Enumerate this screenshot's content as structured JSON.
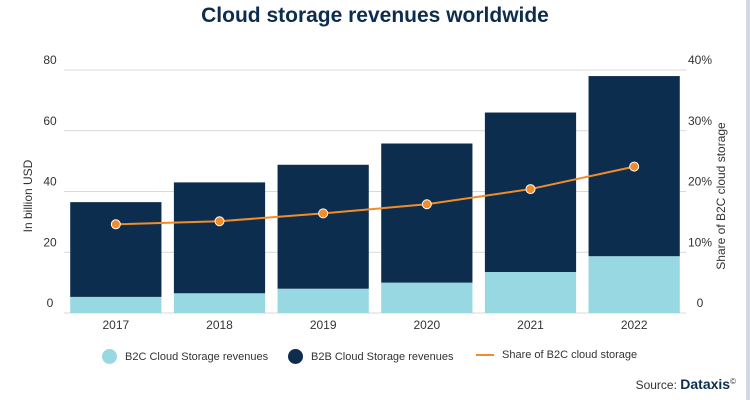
{
  "title": "Cloud storage revenues worldwide",
  "chart_data": {
    "type": "bar",
    "categories": [
      "2017",
      "2018",
      "2019",
      "2020",
      "2021",
      "2022"
    ],
    "series": [
      {
        "name": "B2C Cloud Storage revenues",
        "values": [
          5.3,
          6.5,
          8,
          10,
          13.5,
          18.7
        ],
        "color": "#98d8e3",
        "stacked": true
      },
      {
        "name": "B2B Cloud Storage revenues",
        "values": [
          31.2,
          36.5,
          40.8,
          45.8,
          52.5,
          59.3
        ],
        "color": "#0d2d4e",
        "stacked": true
      },
      {
        "name": "Share of B2C cloud storage",
        "values": [
          14.6,
          15.1,
          16.4,
          17.9,
          20.4,
          24.1
        ],
        "color": "#f28c28",
        "type": "line",
        "axis": "right"
      }
    ],
    "ylabel": "In billion USD",
    "ylim": [
      0,
      80
    ],
    "yticks": [
      "0",
      "20",
      "40",
      "60",
      "80"
    ],
    "y2label": "Share of B2C cloud storage",
    "y2lim": [
      0,
      40
    ],
    "y2ticks": [
      "0",
      "10%",
      "20%",
      "30%",
      "40%"
    ],
    "grid": true,
    "legend_position": "bottom"
  },
  "legend": {
    "b2c_label": "B2C Cloud Storage revenues",
    "b2b_label": "B2B Cloud Storage revenues",
    "share_label": "Share of B2C cloud storage"
  },
  "source": {
    "label": "Source:",
    "brand": "Dataxis",
    "mark": "©"
  }
}
